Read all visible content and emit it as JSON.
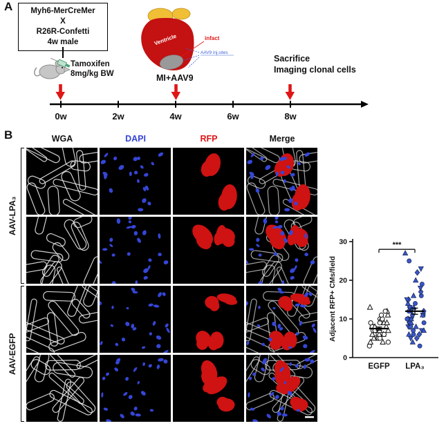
{
  "figure": {
    "panelA": {
      "label": "A",
      "box_lines": [
        "Myh6-MerCreMer",
        "X",
        "R26R-Confetti",
        "4w male"
      ],
      "tamoxifen_lines": [
        "Tamoxifen",
        "8mg/kg BW"
      ],
      "mi_label": "MI+AAV9",
      "sacrifice_lines": [
        "Sacrifice",
        "Imaging clonal cells"
      ],
      "heart_labels": {
        "ventricle": "Ventricle",
        "infarct": "infact",
        "injection": "AAV9 inj.sites"
      },
      "timeline_ticks": [
        "0w",
        "2w",
        "4w",
        "6w",
        "8w"
      ],
      "arrow_color": "#e01616"
    },
    "panelB": {
      "label": "B",
      "columns": [
        {
          "label": "WGA",
          "color": "#111111"
        },
        {
          "label": "DAPI",
          "color": "#3546d6"
        },
        {
          "label": "RFP",
          "color": "#e01616"
        },
        {
          "label": "Merge",
          "color": "#111111"
        }
      ],
      "groups": [
        {
          "label": "AAV-LPA₃"
        },
        {
          "label": "AAV-EGFP"
        }
      ],
      "stain_colors": {
        "wga": "#e8e8e8",
        "dapi": "#3546d6",
        "rfp": "#cf1212"
      }
    }
  },
  "chart_data": {
    "type": "scatter",
    "title": "",
    "xlabel": "",
    "ylabel": "Adjacent RFP+ CMs/field",
    "ylim": [
      0,
      30
    ],
    "yticks": [
      0,
      10,
      20,
      30
    ],
    "categories": [
      "EGFP",
      "LPA₃"
    ],
    "legend": "none",
    "significance": {
      "label": "***",
      "between": [
        "EGFP",
        "LPA₃"
      ],
      "at_y": 28
    },
    "series": [
      {
        "name": "EGFP",
        "style": "open",
        "color": "#ffffff",
        "stroke": "#111111",
        "mean": 7.5,
        "sem": 0.4,
        "values": [
          3,
          4,
          4,
          4,
          5,
          5,
          5,
          5,
          5,
          6,
          6,
          6,
          6,
          6,
          7,
          7,
          7,
          7,
          7,
          7,
          8,
          8,
          8,
          8,
          8,
          8,
          9,
          9,
          9,
          9,
          10,
          10,
          10,
          11,
          11,
          12,
          12,
          13
        ]
      },
      {
        "name": "LPA₃",
        "style": "filled",
        "color": "#3a57c9",
        "stroke": "#16244f",
        "mean": 12,
        "sem": 0.8,
        "values": [
          3,
          4,
          5,
          5,
          6,
          6,
          6,
          7,
          7,
          7,
          8,
          8,
          8,
          8,
          9,
          9,
          9,
          9,
          10,
          10,
          10,
          10,
          11,
          11,
          11,
          11,
          12,
          12,
          12,
          13,
          13,
          13,
          14,
          14,
          15,
          15,
          16,
          16,
          17,
          18,
          19,
          20,
          22,
          23,
          25,
          27
        ]
      }
    ]
  }
}
